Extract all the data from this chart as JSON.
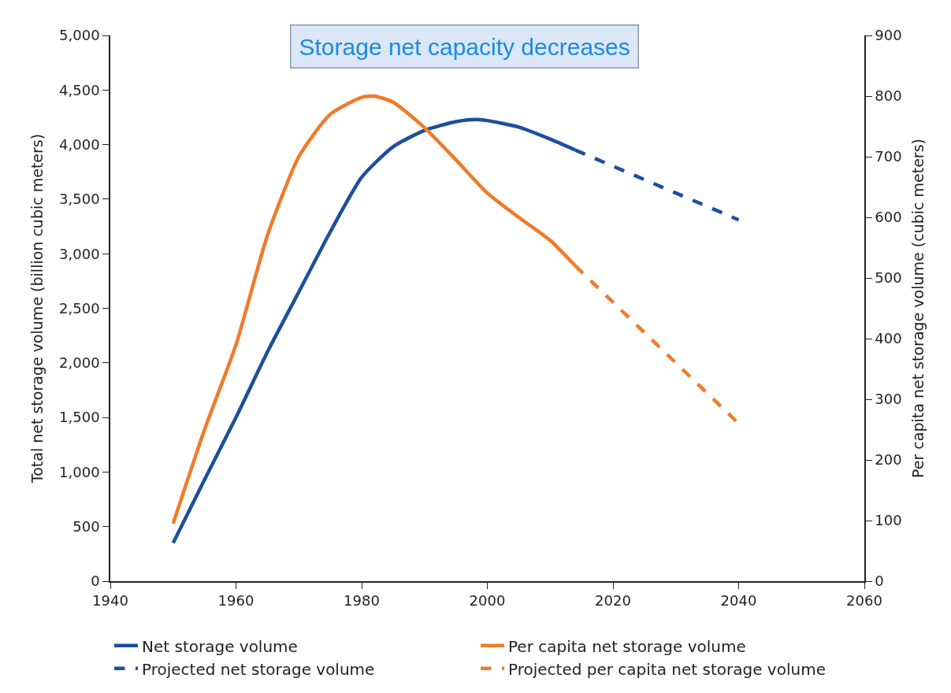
{
  "chart_data": {
    "type": "line",
    "title": "Storage net capacity decreases",
    "ylabel": "Total net storage volume (billion cubic meters)",
    "y2label": "Per capita net storage volume (cubic meters)",
    "xlim": [
      1940,
      2060
    ],
    "xticks": [
      1940,
      1960,
      1980,
      2000,
      2020,
      2040,
      2060
    ],
    "ylim": [
      0,
      5000
    ],
    "yticks": [
      0,
      500,
      {
        "value": 1000,
        "label": "1,000"
      },
      {
        "value": 1500,
        "label": "1,500"
      },
      {
        "value": 2000,
        "label": "2,000"
      },
      {
        "value": 2500,
        "label": "2,500"
      },
      {
        "value": 3000,
        "label": "3,000"
      },
      {
        "value": 3500,
        "label": "3,500"
      },
      {
        "value": 4000,
        "label": "4,000"
      },
      {
        "value": 4500,
        "label": "4,500"
      },
      {
        "value": 5000,
        "label": "5,000"
      }
    ],
    "y2lim": [
      0,
      900
    ],
    "y2ticks": [
      0,
      100,
      200,
      300,
      400,
      500,
      600,
      700,
      800,
      900
    ],
    "legend": "bottom",
    "marker": "none",
    "series": [
      {
        "name": "Net storage volume",
        "color": "#1c4f9c",
        "line_style": "solid",
        "x": [
          1950,
          1955,
          1960,
          1965,
          1970,
          1975,
          1980,
          1985,
          1990,
          1995,
          1998,
          2000,
          2005,
          2010,
          2014
        ],
        "values": [
          350,
          930,
          1500,
          2100,
          2650,
          3200,
          3700,
          3980,
          4130,
          4210,
          4230,
          4220,
          4160,
          4050,
          3950
        ]
      },
      {
        "name": "Per capita net storage volume",
        "color": "#f07b2a",
        "line_style": "solid",
        "axis": "y2",
        "x": [
          1950,
          1955,
          1960,
          1965,
          1970,
          1975,
          1980,
          1982,
          1985,
          1990,
          1995,
          2000,
          2005,
          2010,
          2014
        ],
        "values": [
          95,
          250,
          390,
          570,
          700,
          770,
          798,
          800,
          790,
          748,
          695,
          640,
          600,
          562,
          520
        ]
      },
      {
        "name": "Projected net storage volume",
        "color": "#1c4f9c",
        "line_style": "dashed",
        "x": [
          2014,
          2040
        ],
        "values": [
          3950,
          3310
        ]
      },
      {
        "name": "Projected per capita net storage volume",
        "color": "#f07b2a",
        "line_style": "dashed",
        "axis": "y2",
        "x": [
          2014,
          2040
        ],
        "values": [
          520,
          260
        ]
      }
    ]
  }
}
